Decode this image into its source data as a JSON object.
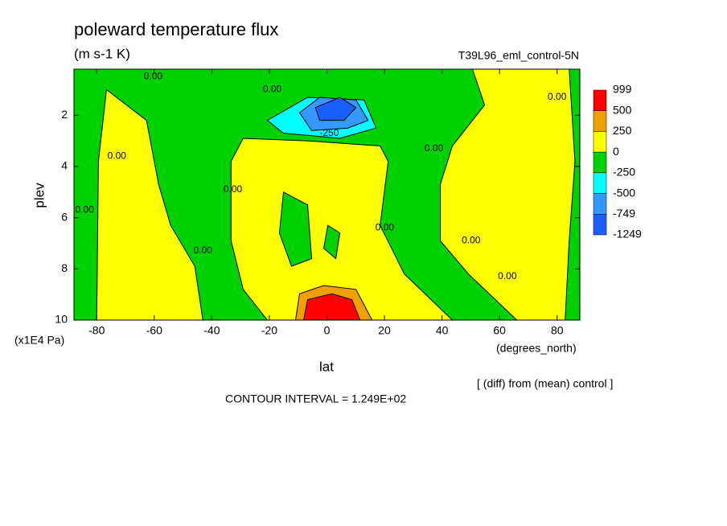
{
  "chart_data": {
    "type": "contour",
    "title": "poleward temperature flux",
    "subtitle": "(m s-1 K)",
    "dataset_label": "T39L96_eml_control-5N",
    "x_label": "lat",
    "x_units": "(degrees_north)",
    "y_label": "plev",
    "y_units": "(x1E4 Pa)",
    "footnote": "[ (diff) from (mean) control ]",
    "contour_interval": "CONTOUR INTERVAL = 1.249E+02",
    "xlim": [
      -87.9,
      87.9
    ],
    "xticks": [
      -80,
      -60,
      -40,
      -20,
      0,
      20,
      40,
      60,
      80
    ],
    "ylim": [
      10,
      0.2
    ],
    "yticks": [
      2,
      4,
      6,
      8,
      10
    ],
    "colorbar_levels": [
      999,
      500,
      250,
      0,
      -250,
      -500,
      -749,
      -1249
    ],
    "colors": [
      "#ff0000",
      "#f0a000",
      "#ffff00",
      "#00d200",
      "#00ffff",
      "#3399ff",
      "#1a5fff"
    ],
    "background_band": 2,
    "regions": [
      {
        "band": 3,
        "points": [
          [
            -87.9,
            0.2
          ],
          [
            50.6,
            0.2
          ],
          [
            54.8,
            1.6
          ],
          [
            43.6,
            3.2
          ],
          [
            39.4,
            4.7
          ],
          [
            39.4,
            6.9
          ],
          [
            49.2,
            8.2
          ],
          [
            60.4,
            9.4
          ],
          [
            66,
            10
          ],
          [
            43.6,
            10
          ],
          [
            26.9,
            8.2
          ],
          [
            18.5,
            6.3
          ],
          [
            21.3,
            3.8
          ],
          [
            18.5,
            3.2
          ],
          [
            -6.7,
            3.0
          ],
          [
            -29.1,
            2.9
          ],
          [
            -33.3,
            3.8
          ],
          [
            -33.3,
            6.9
          ],
          [
            -29.1,
            8.8
          ],
          [
            -20.7,
            10
          ],
          [
            -43.1,
            10
          ],
          [
            -45.9,
            7.9
          ],
          [
            -54.3,
            6.3
          ],
          [
            -58.5,
            4.7
          ],
          [
            -62.7,
            2.2
          ],
          [
            -76.6,
            1.0
          ],
          [
            -79.4,
            3.8
          ],
          [
            -80,
            10
          ],
          [
            -87.9,
            10
          ]
        ]
      },
      {
        "band": 3,
        "points": [
          [
            84.2,
            0.2
          ],
          [
            87.9,
            0.2
          ],
          [
            87.9,
            10
          ],
          [
            82.8,
            10
          ],
          [
            84.2,
            6.9
          ],
          [
            86.2,
            3.8
          ]
        ]
      },
      {
        "band": 3,
        "points": [
          [
            -15.1,
            5.0
          ],
          [
            -6.7,
            5.5
          ],
          [
            -5.3,
            7.6
          ],
          [
            -12.3,
            7.9
          ],
          [
            -16.5,
            6.6
          ]
        ]
      },
      {
        "band": 3,
        "points": [
          [
            0.3,
            6.3
          ],
          [
            4.5,
            6.6
          ],
          [
            3.1,
            7.6
          ],
          [
            -1.1,
            7.2
          ]
        ]
      },
      {
        "band": 4,
        "points": [
          [
            -20.7,
            2.2
          ],
          [
            -6.7,
            1.3
          ],
          [
            12.9,
            1.4
          ],
          [
            17.1,
            2.5
          ],
          [
            4.5,
            2.9
          ],
          [
            -15.1,
            2.7
          ]
        ]
      },
      {
        "band": 5,
        "points": [
          [
            -9.5,
            1.9
          ],
          [
            -2.5,
            1.3
          ],
          [
            10.1,
            1.4
          ],
          [
            14.3,
            2.2
          ],
          [
            7.3,
            2.5
          ],
          [
            -5.3,
            2.6
          ]
        ]
      },
      {
        "band": 6,
        "points": [
          [
            -4.0,
            1.7
          ],
          [
            4.5,
            1.3
          ],
          [
            10.1,
            1.7
          ],
          [
            5.9,
            2.2
          ],
          [
            -2.5,
            2.2
          ]
        ]
      },
      {
        "band": 1,
        "points": [
          [
            -10.9,
            10
          ],
          [
            -9.5,
            8.97
          ],
          [
            -1.1,
            8.65
          ],
          [
            10.1,
            8.8
          ],
          [
            15.7,
            10
          ]
        ]
      },
      {
        "band": 0,
        "points": [
          [
            -8.1,
            10
          ],
          [
            -6.7,
            9.2
          ],
          [
            1.7,
            8.97
          ],
          [
            8.7,
            9.2
          ],
          [
            11.5,
            10
          ]
        ]
      }
    ],
    "contour_labels": [
      {
        "text": "0.00",
        "lat": -60.4,
        "plev": 0.5
      },
      {
        "text": "0.00",
        "lat": -84.2,
        "plev": 5.7
      },
      {
        "text": "0.00",
        "lat": -73,
        "plev": 3.6
      },
      {
        "text": "0.00",
        "lat": -43.1,
        "plev": 7.3
      },
      {
        "text": "0.00",
        "lat": -32.7,
        "plev": 4.9
      },
      {
        "text": "0.00",
        "lat": -19.0,
        "plev": 1.0
      },
      {
        "text": "0.00",
        "lat": 20.1,
        "plev": 6.4
      },
      {
        "text": "0.00",
        "lat": 37.2,
        "plev": 3.3
      },
      {
        "text": "0.00",
        "lat": 50.1,
        "plev": 6.9
      },
      {
        "text": "0.00",
        "lat": 62.7,
        "plev": 8.3
      },
      {
        "text": "0.00",
        "lat": 80,
        "plev": 1.3
      },
      {
        "text": "-250",
        "lat": 0.8,
        "plev": 2.7
      }
    ]
  }
}
